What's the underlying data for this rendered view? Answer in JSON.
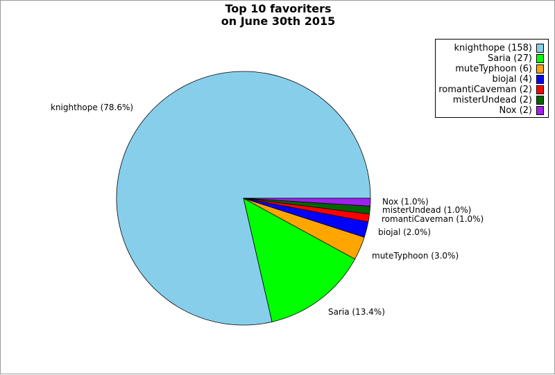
{
  "chart_data": {
    "type": "pie",
    "title_lines": [
      "Top 10 favoriters",
      "on June 30th 2015"
    ],
    "slices": [
      {
        "name": "knighthope",
        "count": 158,
        "percent": 78.6,
        "color": "#87ceeb",
        "legend": "knighthope (158)",
        "label": "knighthope (78.6%)"
      },
      {
        "name": "Saria",
        "count": 27,
        "percent": 13.4,
        "color": "#00ff00",
        "legend": "Saria (27)",
        "label": "Saria (13.4%)"
      },
      {
        "name": "muteTyphoon",
        "count": 6,
        "percent": 3.0,
        "color": "#ffa500",
        "legend": "muteTyphoon (6)",
        "label": "muteTyphoon (3.0%)"
      },
      {
        "name": "biojal",
        "count": 4,
        "percent": 2.0,
        "color": "#0000ff",
        "legend": "biojal (4)",
        "label": "biojal (2.0%)"
      },
      {
        "name": "romantiCaveman",
        "count": 2,
        "percent": 1.0,
        "color": "#ff0000",
        "legend": "romantiCaveman (2)",
        "label": "romantiCaveman (1.0%)"
      },
      {
        "name": "misterUndead",
        "count": 2,
        "percent": 1.0,
        "color": "#006400",
        "legend": "misterUndead (2)",
        "label": "misterUndead (1.0%)"
      },
      {
        "name": "Nox",
        "count": 2,
        "percent": 1.0,
        "color": "#a020f0",
        "legend": "Nox (2)",
        "label": "Nox (1.0%)"
      }
    ],
    "legend_position": "top-right",
    "direction": "counterclockwise from 3 o'clock"
  }
}
